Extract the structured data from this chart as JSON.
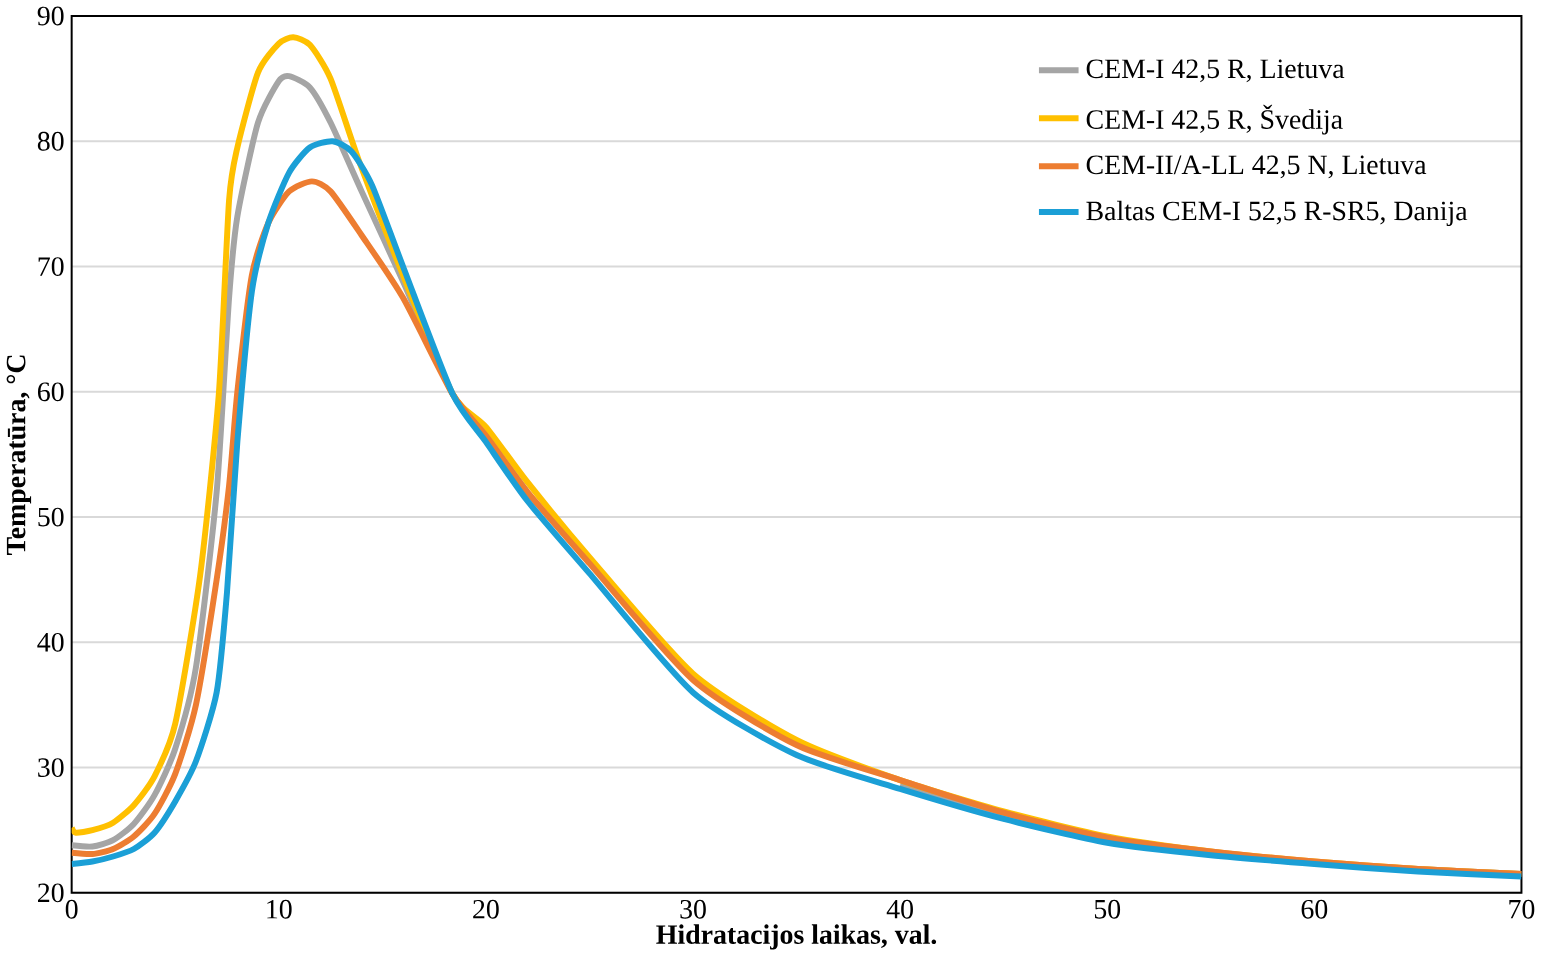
{
  "chart_data": {
    "type": "line",
    "xlabel": "Hidratacijos laikas, val.",
    "ylabel": "Temperatūra, °C",
    "xlim": [
      0,
      70
    ],
    "ylim": [
      20,
      90
    ],
    "xticks": [
      0,
      10,
      20,
      30,
      40,
      50,
      60,
      70
    ],
    "yticks": [
      20,
      30,
      40,
      50,
      60,
      70,
      80,
      90
    ],
    "grid": "y",
    "legend": "top right",
    "marker": "none",
    "line_style": "solid",
    "series": [
      {
        "name": "CEM-I 42,5 R, Lietuva",
        "color": "#a5a5a5",
        "x": [
          0,
          1,
          2,
          3,
          4,
          5,
          6,
          7,
          7.6,
          8,
          9,
          10,
          10.5,
          11.5,
          12.5,
          14,
          16,
          18.4,
          20,
          22,
          25,
          30,
          35,
          40,
          45,
          50,
          55,
          60,
          65,
          70
        ],
        "values": [
          23.8,
          23.7,
          24.2,
          25.5,
          27.8,
          31.5,
          38,
          52,
          67.5,
          74,
          81.5,
          84.8,
          85.2,
          84.3,
          81.5,
          76,
          68.8,
          59.8,
          56.5,
          52,
          null,
          null,
          null,
          28.6,
          26.2,
          24.3,
          23.2,
          22.4,
          21.9,
          21.5
        ]
      },
      {
        "name": "CEM-I 42,5 R, Švedija",
        "color": "#ffc000",
        "x": [
          0,
          0.2,
          1,
          2,
          3,
          4,
          5,
          6.2,
          7.1,
          7.6,
          8,
          9,
          10,
          10.7,
          11.5,
          12.5,
          13.9,
          16,
          18.4,
          20,
          22,
          25,
          30,
          35,
          40,
          45,
          50,
          55,
          60,
          65,
          70
        ],
        "values": [
          25.2,
          24.8,
          25,
          25.6,
          27,
          29.3,
          33.5,
          45.3,
          59.7,
          75.3,
          79.5,
          85.5,
          87.8,
          88.3,
          87.7,
          85,
          78.3,
          69.3,
          59.8,
          57.2,
          52.8,
          46.8,
          37.5,
          32.2,
          29,
          26.5,
          24.5,
          23.3,
          22.5,
          21.9,
          21.5
        ]
      },
      {
        "name": "CEM-II/A-LL 42,5 N, Lietuva",
        "color": "#ed7d31",
        "x": [
          0,
          1,
          2,
          3,
          4,
          5,
          6,
          7,
          7.6,
          8,
          8.7,
          9.5,
          10.5,
          11.6,
          12.5,
          14,
          16,
          18.4,
          20,
          22,
          25,
          30,
          35,
          40,
          45,
          50,
          55,
          60,
          65,
          70
        ],
        "values": [
          23.2,
          23.1,
          23.5,
          24.5,
          26.3,
          29.5,
          35,
          45,
          52.5,
          60,
          69.3,
          73.5,
          76,
          76.8,
          76,
          72.5,
          67.5,
          59.8,
          56.5,
          52,
          46.3,
          37,
          31.8,
          29,
          26.4,
          24.4,
          23.3,
          22.5,
          21.9,
          21.5
        ]
      },
      {
        "name": "Baltas CEM-I 52,5 R-SR5, Danija",
        "color": "#1b9fd6",
        "x": [
          0,
          1,
          2,
          3,
          4,
          5,
          6,
          7,
          7.5,
          8,
          8.7,
          9.5,
          10.5,
          11.5,
          12.6,
          13.5,
          14.5,
          16,
          18.4,
          20,
          22,
          25,
          30,
          35,
          40,
          45,
          50,
          55,
          60,
          65,
          70
        ],
        "values": [
          22.3,
          22.5,
          22.9,
          23.5,
          24.8,
          27.3,
          30.5,
          36,
          44,
          56,
          68,
          73.5,
          77.5,
          79.5,
          80,
          79.2,
          76.5,
          70,
          59.8,
          56,
          51.3,
          45.5,
          36,
          31,
          28.3,
          25.9,
          24,
          23,
          22.3,
          21.7,
          21.3
        ]
      }
    ]
  }
}
